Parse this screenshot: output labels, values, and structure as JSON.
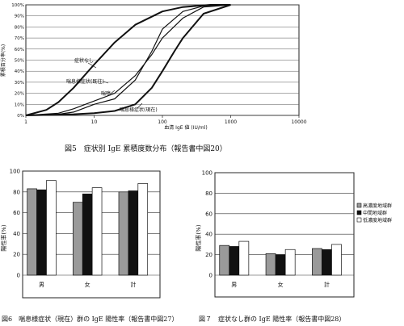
{
  "chart_data": [
    {
      "type": "line",
      "ylabel": "累積百分率(%)",
      "xlabel": "血清 IgE 値 (IU/ml)",
      "x_scale": "log",
      "xlim": [
        1,
        10000
      ],
      "ylim": [
        0,
        100
      ],
      "x_ticks": [
        "1",
        "10",
        "100",
        "1000",
        "10000"
      ],
      "y_ticks": [
        "0%",
        "10%",
        "20%",
        "30%",
        "40%",
        "50%",
        "60%",
        "70%",
        "80%",
        "90%",
        "100%"
      ],
      "grid": true,
      "series": [
        {
          "name": "症状なし",
          "x": [
            1,
            2,
            3,
            5,
            10,
            20,
            40,
            100,
            200,
            500,
            1000
          ],
          "y": [
            0,
            5,
            12,
            25,
            46,
            66,
            82,
            94,
            98,
            100,
            100
          ]
        },
        {
          "name": "喘息様症状(既往)",
          "x": [
            1,
            3,
            5,
            10,
            20,
            40,
            70,
            100,
            200,
            400,
            1000
          ],
          "y": [
            0,
            2,
            6,
            13,
            20,
            36,
            55,
            70,
            88,
            98,
            100
          ]
        },
        {
          "name": "喘鳴",
          "x": [
            1,
            3,
            5,
            10,
            20,
            40,
            70,
            100,
            200,
            400,
            1000
          ],
          "y": [
            0,
            1,
            3,
            10,
            15,
            32,
            58,
            78,
            94,
            99,
            100
          ]
        },
        {
          "name": "喘息様症状(現在)",
          "x": [
            1,
            5,
            10,
            20,
            40,
            70,
            100,
            150,
            200,
            400,
            1000
          ],
          "y": [
            0,
            1,
            2,
            4,
            10,
            25,
            40,
            58,
            70,
            92,
            100
          ]
        }
      ]
    },
    {
      "type": "bar",
      "ylabel": "陽性率(%)",
      "categories": [
        "男",
        "女",
        "計"
      ],
      "ylim": [
        0,
        100
      ],
      "y_ticks": [
        "0",
        "20",
        "40",
        "60",
        "80",
        "100"
      ],
      "series": [
        {
          "name": "高濃度地域群",
          "values": [
            83,
            70,
            80
          ]
        },
        {
          "name": "中間地域群",
          "values": [
            82,
            78,
            81
          ]
        },
        {
          "name": "低濃度地域群",
          "values": [
            91,
            84,
            88
          ]
        }
      ]
    },
    {
      "type": "bar",
      "ylabel": "陽性率(%)",
      "categories": [
        "男",
        "女",
        "計"
      ],
      "ylim": [
        0,
        100
      ],
      "y_ticks": [
        "0",
        "20",
        "40",
        "60",
        "80",
        "100"
      ],
      "legend": "right",
      "series": [
        {
          "name": "高濃度地域群",
          "values": [
            29,
            21,
            26
          ]
        },
        {
          "name": "中間地域群",
          "values": [
            28,
            20,
            25
          ]
        },
        {
          "name": "低濃度地域群",
          "values": [
            33,
            25,
            30
          ]
        }
      ]
    }
  ],
  "captions": {
    "fig5": "図5　症状別 IgE 累積度数分布（報告書中図20）",
    "fig6": "図6　喘息様症状（現在）群の IgE 陽性率（報告書中図27）",
    "fig7": "図７　症状なし群の IgE 陽性率（報告書中図28）"
  },
  "colors": {
    "high": "#9a9a9a",
    "mid": "#111111",
    "low": "#ffffff"
  }
}
